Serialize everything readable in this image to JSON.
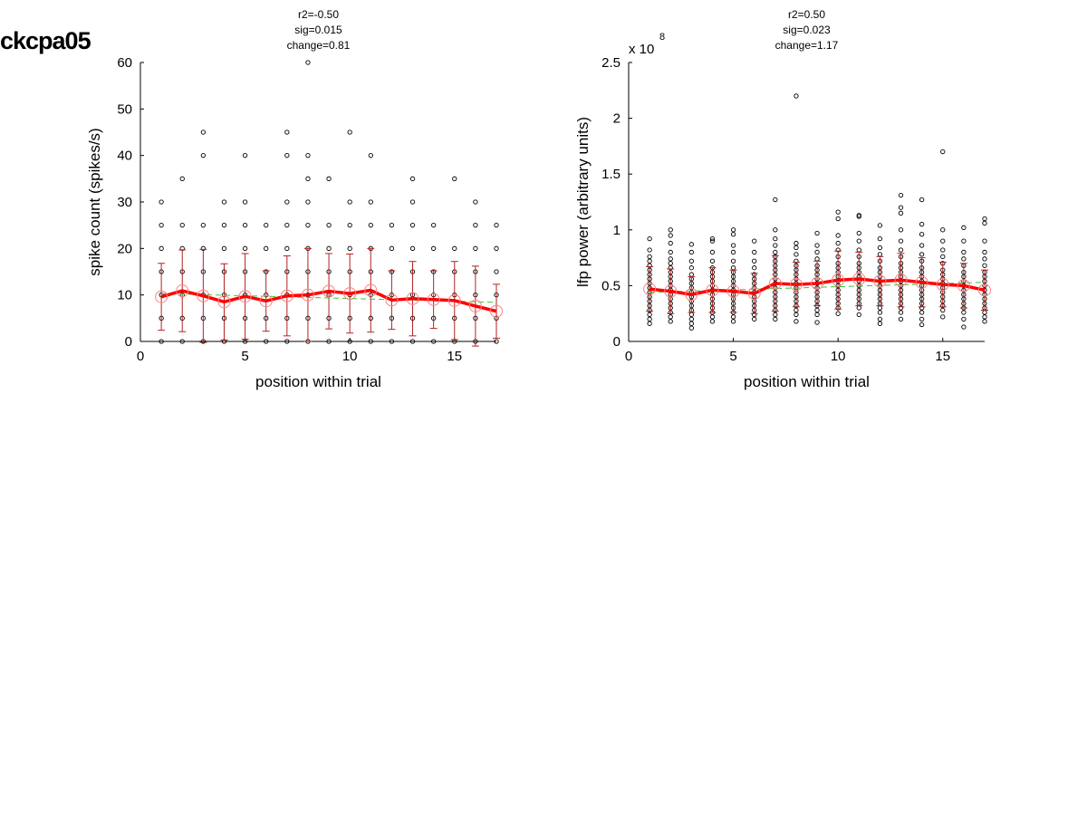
{
  "page": {
    "title": "ckcpa05"
  },
  "chart_data": [
    {
      "type": "scatter",
      "stats": [
        "r2=-0.50",
        "sig=0.015",
        "change=0.81"
      ],
      "xlabel": "position within trial",
      "ylabel": "spike count (spikes/s)",
      "exponent_label": "",
      "xlim": [
        0,
        17
      ],
      "ylim": [
        0,
        60
      ],
      "xticks": [
        0,
        5,
        10,
        15
      ],
      "xtick_labels": [
        "0",
        "5",
        "10",
        "15"
      ],
      "yticks": [
        0,
        10,
        20,
        30,
        40,
        50,
        60
      ],
      "ytick_labels": [
        "0",
        "10",
        "20",
        "30",
        "40",
        "50",
        "60"
      ],
      "colors": {
        "raw": "#000000",
        "mean": "#ff0000",
        "errorbar": "#b22222",
        "marker": "#ff8080",
        "fit": "#33cc33"
      },
      "scatter_points": [
        {
          "x": 1,
          "ys": [
            0,
            5,
            10,
            15,
            20,
            25,
            30
          ]
        },
        {
          "x": 2,
          "ys": [
            0,
            5,
            10,
            15,
            20,
            25,
            35
          ]
        },
        {
          "x": 3,
          "ys": [
            0,
            5,
            10,
            15,
            20,
            25,
            40,
            45
          ]
        },
        {
          "x": 4,
          "ys": [
            0,
            5,
            10,
            15,
            20,
            25,
            30
          ]
        },
        {
          "x": 5,
          "ys": [
            0,
            5,
            10,
            15,
            20,
            25,
            30,
            40
          ]
        },
        {
          "x": 6,
          "ys": [
            0,
            5,
            10,
            15,
            20,
            25
          ]
        },
        {
          "x": 7,
          "ys": [
            0,
            5,
            10,
            15,
            20,
            25,
            30,
            40,
            45
          ]
        },
        {
          "x": 8,
          "ys": [
            0,
            5,
            10,
            15,
            20,
            25,
            30,
            35,
            40,
            60
          ]
        },
        {
          "x": 9,
          "ys": [
            0,
            5,
            10,
            15,
            20,
            25,
            35
          ]
        },
        {
          "x": 10,
          "ys": [
            0,
            5,
            10,
            15,
            20,
            25,
            30,
            45
          ]
        },
        {
          "x": 11,
          "ys": [
            0,
            5,
            10,
            15,
            20,
            25,
            30,
            40
          ]
        },
        {
          "x": 12,
          "ys": [
            0,
            5,
            10,
            15,
            20,
            25
          ]
        },
        {
          "x": 13,
          "ys": [
            0,
            5,
            10,
            15,
            20,
            25,
            30,
            35
          ]
        },
        {
          "x": 14,
          "ys": [
            0,
            5,
            10,
            15,
            20,
            25
          ]
        },
        {
          "x": 15,
          "ys": [
            0,
            5,
            10,
            15,
            20,
            35
          ]
        },
        {
          "x": 16,
          "ys": [
            0,
            5,
            10,
            15,
            20,
            25,
            30
          ]
        },
        {
          "x": 17,
          "ys": [
            0,
            5,
            10,
            15,
            20,
            25
          ]
        }
      ],
      "mean": [
        {
          "x": 1,
          "y": 9.6,
          "err": 7.2
        },
        {
          "x": 2,
          "y": 10.9,
          "err": 8.8
        },
        {
          "x": 3,
          "y": 9.8,
          "err": 10.0
        },
        {
          "x": 4,
          "y": 8.5,
          "err": 8.2
        },
        {
          "x": 5,
          "y": 9.7,
          "err": 9.2
        },
        {
          "x": 6,
          "y": 8.7,
          "err": 6.5
        },
        {
          "x": 7,
          "y": 9.8,
          "err": 8.6
        },
        {
          "x": 8,
          "y": 10.0,
          "err": 10.0
        },
        {
          "x": 9,
          "y": 10.8,
          "err": 8.1
        },
        {
          "x": 10,
          "y": 10.3,
          "err": 8.5
        },
        {
          "x": 11,
          "y": 11.0,
          "err": 9.0
        },
        {
          "x": 12,
          "y": 8.9,
          "err": 6.3
        },
        {
          "x": 13,
          "y": 9.2,
          "err": 8.0
        },
        {
          "x": 14,
          "y": 9.0,
          "err": 6.2
        },
        {
          "x": 15,
          "y": 8.8,
          "err": 8.4
        },
        {
          "x": 16,
          "y": 7.6,
          "err": 8.6
        },
        {
          "x": 17,
          "y": 6.5,
          "err": 5.8
        }
      ],
      "fit_line": [
        [
          1,
          10.3
        ],
        [
          17,
          8.4
        ]
      ]
    },
    {
      "type": "scatter",
      "stats": [
        "r2=0.50",
        "sig=0.023",
        "change=1.17"
      ],
      "xlabel": "position within trial",
      "ylabel": "lfp power (arbitrary units)",
      "exponent_label": "x 10",
      "exponent_power": "8",
      "xlim": [
        0,
        17
      ],
      "ylim": [
        0,
        2.5
      ],
      "xticks": [
        0,
        5,
        10,
        15
      ],
      "xtick_labels": [
        "0",
        "5",
        "10",
        "15"
      ],
      "yticks": [
        0,
        0.5,
        1,
        1.5,
        2,
        2.5
      ],
      "ytick_labels": [
        "0",
        "0.5",
        "1",
        "1.5",
        "2",
        "2.5"
      ],
      "colors": {
        "raw": "#000000",
        "mean": "#ff0000",
        "errorbar": "#b22222",
        "marker": "#ff8080",
        "fit": "#33cc33"
      },
      "scatter_points": [
        {
          "x": 1,
          "ys": [
            0.16,
            0.2,
            0.24,
            0.28,
            0.32,
            0.36,
            0.4,
            0.44,
            0.48,
            0.52,
            0.56,
            0.6,
            0.64,
            0.68,
            0.72,
            0.76,
            0.82,
            0.92
          ]
        },
        {
          "x": 2,
          "ys": [
            0.18,
            0.22,
            0.26,
            0.3,
            0.34,
            0.38,
            0.42,
            0.46,
            0.5,
            0.54,
            0.58,
            0.62,
            0.66,
            0.7,
            0.74,
            0.8,
            0.88,
            0.95,
            1.0
          ]
        },
        {
          "x": 3,
          "ys": [
            0.12,
            0.16,
            0.2,
            0.24,
            0.28,
            0.32,
            0.36,
            0.4,
            0.44,
            0.48,
            0.52,
            0.56,
            0.6,
            0.66,
            0.72,
            0.8,
            0.87
          ]
        },
        {
          "x": 4,
          "ys": [
            0.18,
            0.22,
            0.26,
            0.3,
            0.34,
            0.38,
            0.42,
            0.46,
            0.5,
            0.54,
            0.58,
            0.62,
            0.66,
            0.72,
            0.8,
            0.9,
            0.92
          ]
        },
        {
          "x": 5,
          "ys": [
            0.18,
            0.22,
            0.26,
            0.3,
            0.34,
            0.38,
            0.42,
            0.46,
            0.5,
            0.54,
            0.58,
            0.62,
            0.66,
            0.72,
            0.8,
            0.86,
            0.96,
            1.0
          ]
        },
        {
          "x": 6,
          "ys": [
            0.2,
            0.24,
            0.28,
            0.32,
            0.36,
            0.4,
            0.44,
            0.48,
            0.52,
            0.56,
            0.6,
            0.66,
            0.72,
            0.8,
            0.9
          ]
        },
        {
          "x": 7,
          "ys": [
            0.2,
            0.24,
            0.28,
            0.32,
            0.36,
            0.4,
            0.44,
            0.48,
            0.52,
            0.56,
            0.6,
            0.64,
            0.68,
            0.72,
            0.76,
            0.8,
            0.86,
            0.92,
            1.0,
            1.27
          ]
        },
        {
          "x": 8,
          "ys": [
            0.18,
            0.24,
            0.28,
            0.32,
            0.36,
            0.4,
            0.44,
            0.48,
            0.52,
            0.56,
            0.6,
            0.64,
            0.68,
            0.72,
            0.78,
            0.84,
            0.88,
            2.2
          ]
        },
        {
          "x": 9,
          "ys": [
            0.17,
            0.24,
            0.28,
            0.32,
            0.36,
            0.4,
            0.44,
            0.48,
            0.52,
            0.56,
            0.6,
            0.64,
            0.68,
            0.74,
            0.8,
            0.86,
            0.97
          ]
        },
        {
          "x": 10,
          "ys": [
            0.25,
            0.3,
            0.34,
            0.38,
            0.42,
            0.46,
            0.5,
            0.54,
            0.58,
            0.62,
            0.66,
            0.7,
            0.76,
            0.82,
            0.88,
            0.95,
            1.1,
            1.16
          ]
        },
        {
          "x": 11,
          "ys": [
            0.24,
            0.3,
            0.34,
            0.38,
            0.42,
            0.46,
            0.5,
            0.54,
            0.58,
            0.62,
            0.66,
            0.7,
            0.76,
            0.82,
            0.9,
            0.97,
            1.12,
            1.13
          ]
        },
        {
          "x": 12,
          "ys": [
            0.16,
            0.2,
            0.26,
            0.3,
            0.34,
            0.38,
            0.42,
            0.46,
            0.5,
            0.54,
            0.58,
            0.62,
            0.66,
            0.72,
            0.78,
            0.84,
            0.92,
            1.04
          ]
        },
        {
          "x": 13,
          "ys": [
            0.2,
            0.26,
            0.3,
            0.34,
            0.38,
            0.42,
            0.46,
            0.5,
            0.54,
            0.58,
            0.62,
            0.66,
            0.7,
            0.76,
            0.82,
            0.9,
            1.0,
            1.15,
            1.2,
            1.31
          ]
        },
        {
          "x": 14,
          "ys": [
            0.15,
            0.2,
            0.26,
            0.3,
            0.34,
            0.38,
            0.42,
            0.46,
            0.5,
            0.54,
            0.58,
            0.62,
            0.66,
            0.72,
            0.78,
            0.86,
            0.96,
            1.05,
            1.27
          ]
        },
        {
          "x": 15,
          "ys": [
            0.22,
            0.28,
            0.32,
            0.36,
            0.4,
            0.44,
            0.48,
            0.52,
            0.56,
            0.6,
            0.64,
            0.7,
            0.76,
            0.82,
            0.9,
            1.0,
            1.7
          ]
        },
        {
          "x": 16,
          "ys": [
            0.13,
            0.2,
            0.26,
            0.3,
            0.34,
            0.38,
            0.42,
            0.46,
            0.5,
            0.54,
            0.58,
            0.62,
            0.68,
            0.74,
            0.8,
            0.9,
            1.02
          ]
        },
        {
          "x": 17,
          "ys": [
            0.18,
            0.22,
            0.26,
            0.3,
            0.34,
            0.38,
            0.42,
            0.46,
            0.5,
            0.54,
            0.58,
            0.62,
            0.68,
            0.74,
            0.8,
            0.9,
            1.06,
            1.1
          ]
        }
      ],
      "mean": [
        {
          "x": 1,
          "y": 0.47,
          "err": 0.2
        },
        {
          "x": 2,
          "y": 0.45,
          "err": 0.2
        },
        {
          "x": 3,
          "y": 0.42,
          "err": 0.16
        },
        {
          "x": 4,
          "y": 0.46,
          "err": 0.2
        },
        {
          "x": 5,
          "y": 0.45,
          "err": 0.19
        },
        {
          "x": 6,
          "y": 0.43,
          "err": 0.18
        },
        {
          "x": 7,
          "y": 0.52,
          "err": 0.25
        },
        {
          "x": 8,
          "y": 0.51,
          "err": 0.2
        },
        {
          "x": 9,
          "y": 0.52,
          "err": 0.2
        },
        {
          "x": 10,
          "y": 0.55,
          "err": 0.26
        },
        {
          "x": 11,
          "y": 0.56,
          "err": 0.24
        },
        {
          "x": 12,
          "y": 0.54,
          "err": 0.22
        },
        {
          "x": 13,
          "y": 0.55,
          "err": 0.24
        },
        {
          "x": 14,
          "y": 0.53,
          "err": 0.22
        },
        {
          "x": 15,
          "y": 0.51,
          "err": 0.2
        },
        {
          "x": 16,
          "y": 0.5,
          "err": 0.2
        },
        {
          "x": 17,
          "y": 0.46,
          "err": 0.18
        }
      ],
      "fit_line": [
        [
          1,
          0.44
        ],
        [
          17,
          0.53
        ]
      ]
    }
  ]
}
